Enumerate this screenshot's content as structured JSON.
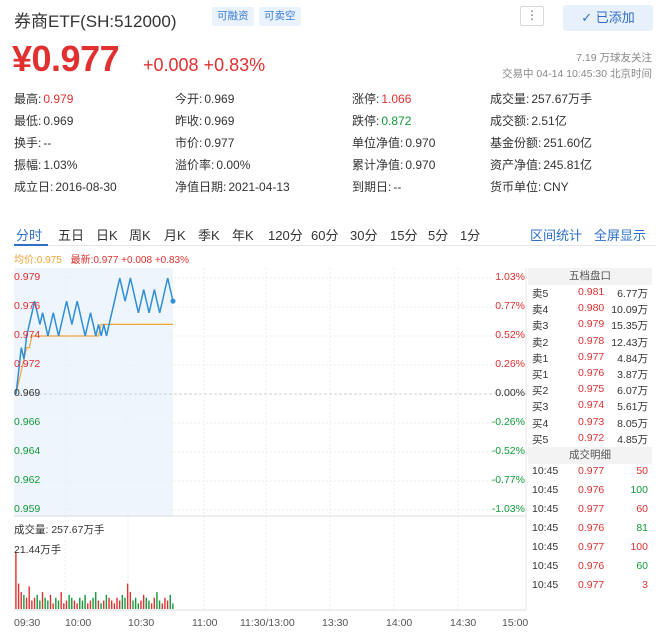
{
  "header": {
    "title": "券商ETF(SH:512000)",
    "tag_margin": "可融资",
    "tag_short": "可卖空",
    "more": "⋮",
    "added_label": "✓ 已添加",
    "price": "¥0.977",
    "change": "+0.008 +0.83%",
    "fans": "7.19 万球友关注",
    "trade_status": "交易中 04-14 10:45:30 北京时间"
  },
  "info": {
    "r1": [
      {
        "k": "最高:",
        "v": "0.979"
      },
      {
        "k": "今开:",
        "v": "0.969"
      },
      {
        "k": "涨停:",
        "v": "1.066"
      },
      {
        "k": "成交量:",
        "v": "257.67万手"
      }
    ],
    "r2": [
      {
        "k": "最低:",
        "v": "0.969"
      },
      {
        "k": "昨收:",
        "v": "0.969"
      },
      {
        "k": "跌停:",
        "v": "0.872"
      },
      {
        "k": "成交额:",
        "v": "2.51亿"
      }
    ],
    "r3": [
      {
        "k": "换手:",
        "v": "--"
      },
      {
        "k": "市价:",
        "v": "0.977"
      },
      {
        "k": "单位净值:",
        "v": "0.970"
      },
      {
        "k": "基金份额:",
        "v": "251.60亿"
      }
    ],
    "r4": [
      {
        "k": "振幅:",
        "v": "1.03%"
      },
      {
        "k": "溢价率:",
        "v": "0.00%"
      },
      {
        "k": "累计净值:",
        "v": "0.970"
      },
      {
        "k": "资产净值:",
        "v": "245.81亿"
      }
    ],
    "r5": [
      {
        "k": "成立日:",
        "v": "2016-08-30"
      },
      {
        "k": "净值日期:",
        "v": "2021-04-13"
      },
      {
        "k": "到期日:",
        "v": "--"
      },
      {
        "k": "货币单位:",
        "v": "CNY"
      }
    ]
  },
  "tabs": [
    "分时",
    "五日",
    "日K",
    "周K",
    "月K",
    "季K",
    "年K",
    "120分",
    "60分",
    "30分",
    "15分",
    "5分",
    "1分"
  ],
  "tab_right": [
    "区间统计",
    "全屏显示"
  ],
  "legend": {
    "avg": "均价:0.975",
    "latest": "最新:0.977 +0.008 +0.83%"
  },
  "y_left": [
    "0.979",
    "0.976",
    "0.974",
    "0.972",
    "0.969",
    "0.966",
    "0.964",
    "0.962",
    "0.959"
  ],
  "y_right": [
    "1.03%",
    "0.77%",
    "0.52%",
    "0.26%",
    "0.00%",
    "-0.26%",
    "-0.52%",
    "-0.77%",
    "-1.03%"
  ],
  "volume": {
    "label": "成交量: 257.67万手",
    "max": "21.44万手"
  },
  "x_labels": [
    "09:30",
    "10:00",
    "10:30",
    "11:00",
    "11:30/13:00",
    "13:30",
    "14:00",
    "14:30",
    "15:00"
  ],
  "orderbook": {
    "title": "五档盘口",
    "asks": [
      {
        "l": "卖5",
        "p": "0.981",
        "q": "6.77万"
      },
      {
        "l": "卖4",
        "p": "0.980",
        "q": "10.09万"
      },
      {
        "l": "卖3",
        "p": "0.979",
        "q": "15.35万"
      },
      {
        "l": "卖2",
        "p": "0.978",
        "q": "12.43万"
      },
      {
        "l": "卖1",
        "p": "0.977",
        "q": "4.84万"
      }
    ],
    "bids": [
      {
        "l": "买1",
        "p": "0.976",
        "q": "3.87万"
      },
      {
        "l": "买2",
        "p": "0.975",
        "q": "6.07万"
      },
      {
        "l": "买3",
        "p": "0.974",
        "q": "5.61万"
      },
      {
        "l": "买4",
        "p": "0.973",
        "q": "8.05万"
      },
      {
        "l": "买5",
        "p": "0.972",
        "q": "4.85万"
      }
    ],
    "ticks_title": "成交明细",
    "ticks": [
      {
        "t": "10:45",
        "p": "0.977",
        "v": "50",
        "c": "red"
      },
      {
        "t": "10:45",
        "p": "0.976",
        "v": "100",
        "c": "green"
      },
      {
        "t": "10:45",
        "p": "0.977",
        "v": "60",
        "c": "red"
      },
      {
        "t": "10:45",
        "p": "0.976",
        "v": "81",
        "c": "green"
      },
      {
        "t": "10:45",
        "p": "0.977",
        "v": "100",
        "c": "red"
      },
      {
        "t": "10:45",
        "p": "0.976",
        "v": "60",
        "c": "green"
      },
      {
        "t": "10:45",
        "p": "0.977",
        "v": "3",
        "c": "red"
      }
    ]
  },
  "chart_data": {
    "type": "line",
    "price_series": [
      0.969,
      0.971,
      0.973,
      0.972,
      0.974,
      0.975,
      0.976,
      0.977,
      0.976,
      0.975,
      0.976,
      0.975,
      0.974,
      0.975,
      0.976,
      0.975,
      0.974,
      0.975,
      0.976,
      0.977,
      0.976,
      0.975,
      0.976,
      0.977,
      0.976,
      0.975,
      0.974,
      0.975,
      0.976,
      0.975,
      0.974,
      0.975,
      0.974,
      0.975,
      0.974,
      0.975,
      0.976,
      0.977,
      0.978,
      0.979,
      0.978,
      0.977,
      0.978,
      0.979,
      0.978,
      0.977,
      0.976,
      0.977,
      0.978,
      0.977,
      0.976,
      0.977,
      0.978,
      0.977,
      0.976,
      0.977,
      0.978,
      0.979,
      0.978,
      0.977
    ],
    "avg_series": [
      0.969,
      0.97,
      0.971,
      0.972,
      0.973,
      0.973,
      0.974,
      0.974,
      0.974,
      0.974,
      0.974,
      0.974,
      0.974,
      0.974,
      0.974,
      0.974,
      0.974,
      0.974,
      0.974,
      0.974,
      0.974,
      0.974,
      0.974,
      0.974,
      0.974,
      0.974,
      0.974,
      0.974,
      0.974,
      0.974,
      0.974,
      0.974,
      0.975,
      0.975,
      0.975,
      0.975,
      0.975,
      0.975,
      0.975,
      0.975,
      0.975,
      0.975,
      0.975,
      0.975,
      0.975,
      0.975,
      0.975,
      0.975,
      0.975,
      0.975,
      0.975,
      0.975,
      0.975,
      0.975,
      0.975,
      0.975,
      0.975,
      0.975,
      0.975,
      0.975
    ],
    "volume_series": [
      20.2,
      9,
      6,
      5,
      4,
      8,
      3,
      4,
      5,
      3,
      6,
      4,
      3,
      5,
      2,
      4,
      3,
      6,
      2,
      3,
      5,
      4,
      3,
      2,
      4,
      3,
      5,
      2,
      3,
      4,
      6,
      3,
      2,
      3,
      5,
      4,
      3,
      2,
      4,
      3,
      5,
      4,
      9,
      6,
      3,
      4,
      2,
      3,
      5,
      4,
      3,
      2,
      4,
      6,
      3,
      2,
      4,
      3,
      5,
      2
    ],
    "ylim": [
      0.959,
      0.979
    ]
  },
  "colors": {
    "up": "#e03030",
    "down": "#139a3a",
    "price_line": "#2f8fd8",
    "avg_line": "#f3a43b"
  }
}
